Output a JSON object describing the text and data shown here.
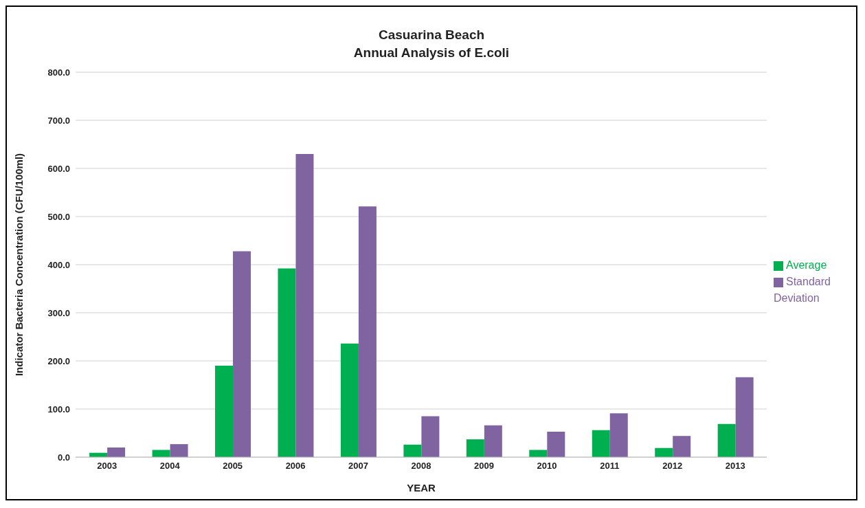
{
  "chart_data": {
    "type": "bar",
    "title": "Casuarina Beach\nAnnual Analysis of E.coli",
    "xlabel": "YEAR",
    "ylabel": "Indicator Bacteria Concentration (CFU/100ml)",
    "categories": [
      "2003",
      "2004",
      "2005",
      "2006",
      "2007",
      "2008",
      "2009",
      "2010",
      "2011",
      "2012",
      "2013"
    ],
    "series": [
      {
        "name": "Average",
        "color": "#00b050",
        "values": [
          9,
          15,
          190,
          392,
          236,
          26,
          37,
          15,
          56,
          19,
          69
        ]
      },
      {
        "name": "Standard Deviation",
        "color": "#8064a2",
        "values": [
          20,
          27,
          428,
          630,
          521,
          85,
          66,
          53,
          91,
          44,
          166
        ]
      }
    ],
    "ylim": [
      0,
      800
    ],
    "yticks": [
      {
        "value": 0,
        "label": "0.0"
      },
      {
        "value": 100,
        "label": "100.0"
      },
      {
        "value": 200,
        "label": "200.0"
      },
      {
        "value": 300,
        "label": "300.0"
      },
      {
        "value": 400,
        "label": "400.0"
      },
      {
        "value": 500,
        "label": "500.0"
      },
      {
        "value": 600,
        "label": "600.0"
      },
      {
        "value": 700,
        "label": "700.0"
      },
      {
        "value": 800,
        "label": "800.0"
      }
    ],
    "grid": "y",
    "legend": "right"
  }
}
